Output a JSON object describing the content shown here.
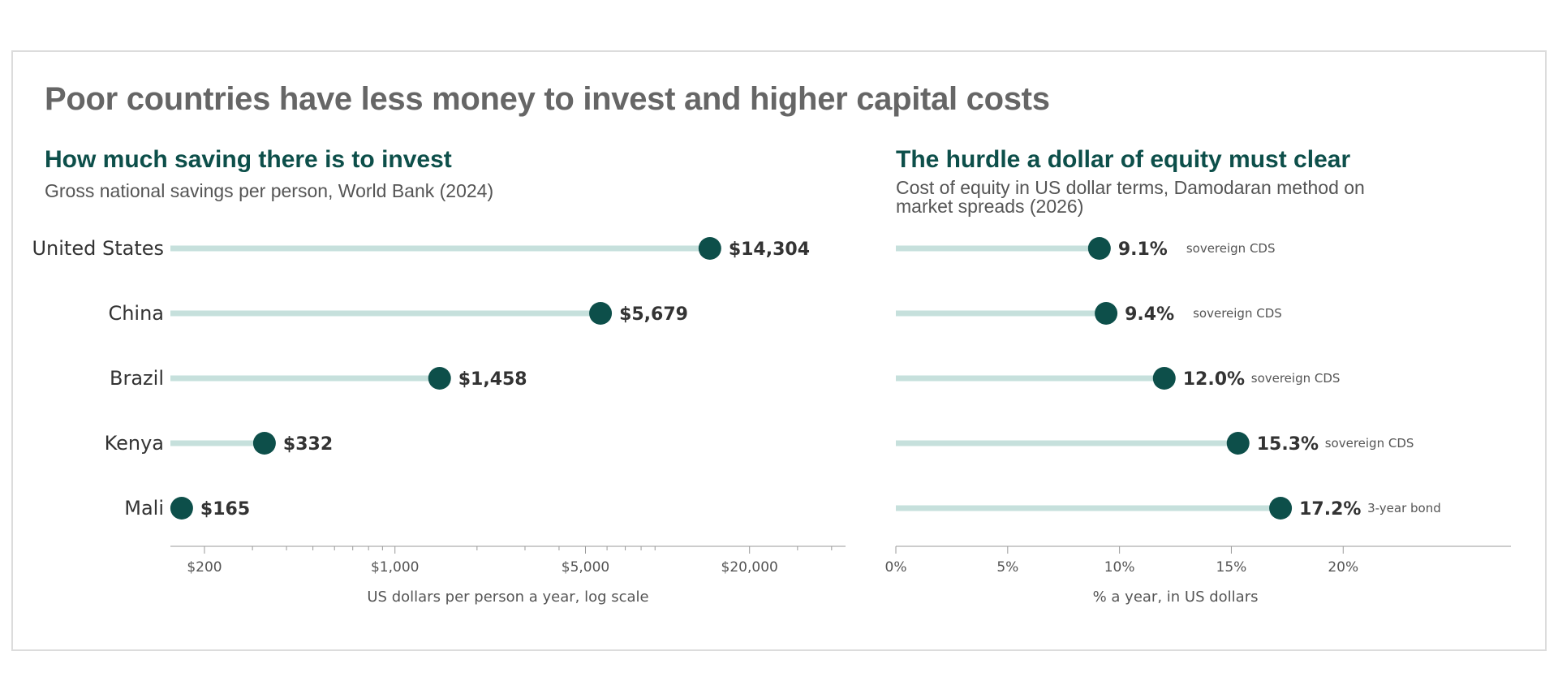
{
  "title": "Poor countries have less money to invest and higher capital costs",
  "left": {
    "heading": "How much saving there is to invest",
    "subtitle": "Gross national savings per person, World Bank (2024)"
  },
  "right": {
    "heading": "The hurdle a dollar of equity must clear",
    "subtitle": "Cost of equity in US dollar terms, Damodaran method on market spreads (2026)"
  },
  "colors": {
    "dot": "#0d4f4a",
    "stem": "#c6e0dc",
    "axis": "#cccccc",
    "heading": "#0d4f4a"
  },
  "chart_data": [
    {
      "type": "scatter",
      "style": "lollipop",
      "log_scale": true,
      "categories": [
        "United States",
        "China",
        "Brazil",
        "Kenya",
        "Mali"
      ],
      "values": [
        14304,
        5679,
        1458,
        332,
        165
      ],
      "value_labels": [
        "$14,304",
        "$5,679",
        "$1,458",
        "$332",
        "$165"
      ],
      "xlim": [
        150,
        45000
      ],
      "xticks": [
        200,
        1000,
        5000,
        20000
      ],
      "xtick_labels": [
        "$200",
        "$1,000",
        "$5,000",
        "$20,000"
      ],
      "minor_ticks": [
        300,
        400,
        500,
        600,
        700,
        800,
        900,
        2000,
        3000,
        4000,
        6000,
        7000,
        8000,
        9000,
        30000,
        40000
      ],
      "xlabel": "US dollars per person a year, log scale",
      "grid": false
    },
    {
      "type": "scatter",
      "style": "lollipop",
      "categories": [
        "United States",
        "China",
        "Brazil",
        "Kenya",
        "Mali"
      ],
      "values": [
        9.1,
        9.4,
        12.0,
        15.3,
        17.2
      ],
      "value_labels": [
        "9.1%",
        "9.4%",
        "12.0%",
        "15.3%",
        "17.2%"
      ],
      "annotations": [
        "sovereign CDS",
        "sovereign CDS",
        "sovereign CDS",
        "sovereign CDS",
        "3-year bond"
      ],
      "xlim": [
        0,
        27.5
      ],
      "xticks": [
        0,
        5,
        10,
        15,
        20
      ],
      "xtick_labels": [
        "0%",
        "5%",
        "10%",
        "15%",
        "20%"
      ],
      "xlabel": "% a year, in US dollars",
      "grid": false
    }
  ]
}
